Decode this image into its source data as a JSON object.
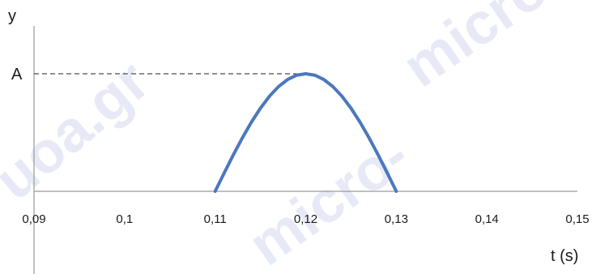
{
  "chart_data": {
    "type": "line",
    "title": "",
    "xlabel": "t (s)",
    "ylabel": "y",
    "xlim": [
      0.09,
      0.15
    ],
    "ylim": [
      0,
      1
    ],
    "x_ticks": [
      "0,09",
      "0,1",
      "0,11",
      "0,12",
      "0,13",
      "0,14",
      "0,15"
    ],
    "x_tick_values": [
      0.09,
      0.1,
      0.11,
      0.12,
      0.13,
      0.14,
      0.15
    ],
    "y_ticks": [
      "A"
    ],
    "y_tick_values": [
      1
    ],
    "series": [
      {
        "x": [
          0.11,
          0.111,
          0.112,
          0.113,
          0.114,
          0.115,
          0.116,
          0.117,
          0.118,
          0.119,
          0.12,
          0.121,
          0.122,
          0.123,
          0.124,
          0.125,
          0.126,
          0.127,
          0.128,
          0.129,
          0.13
        ],
        "y": [
          0,
          0.156,
          0.309,
          0.454,
          0.588,
          0.707,
          0.809,
          0.891,
          0.951,
          0.988,
          1,
          0.988,
          0.951,
          0.891,
          0.809,
          0.707,
          0.588,
          0.454,
          0.309,
          0.156,
          0
        ]
      }
    ],
    "grid": false,
    "line_color": "#4b78bd"
  },
  "watermarks": [
    "micro-",
    "uoa.gr",
    "micro-"
  ]
}
